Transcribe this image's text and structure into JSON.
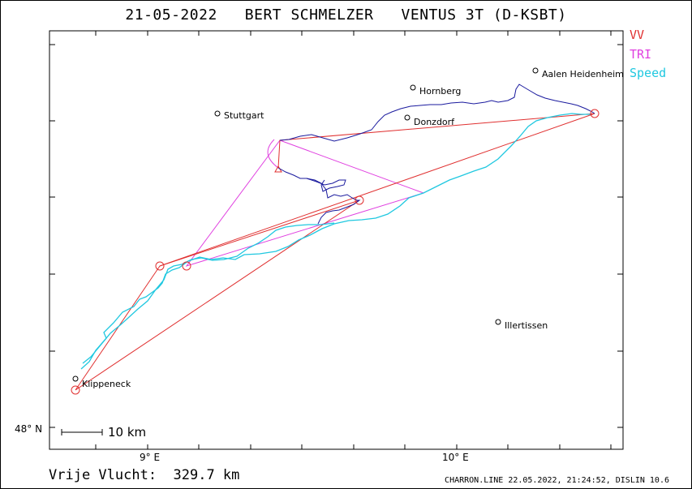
{
  "header": {
    "title": "21-05-2022   BERT SCHMELZER   VENTUS 3T (D-KSBT)"
  },
  "legend": {
    "items": [
      {
        "label": "VV",
        "color": "#e03030"
      },
      {
        "label": "TRI",
        "color": "#e040e0"
      },
      {
        "label": "Speed",
        "color": "#20c8e0"
      }
    ]
  },
  "map": {
    "places": [
      {
        "name": "Stuttgart"
      },
      {
        "name": "Hornberg"
      },
      {
        "name": "Aalen Heidenheim"
      },
      {
        "name": "Donzdorf"
      },
      {
        "name": "Illertissen"
      },
      {
        "name": "Klippeneck"
      }
    ],
    "axis": {
      "lon_labels": [
        "9° E",
        "10° E"
      ],
      "lat_labels": [
        "48° N"
      ]
    },
    "scalebar_label": "10 km",
    "colors": {
      "track": "#1a1a9e",
      "track_fast": "#20c8e0",
      "vv": "#e03030",
      "tri": "#e040e0"
    }
  },
  "footer": {
    "distance_label": "Vrije Vlucht:  329.7 km",
    "credit": "CHARRON.LINE 22.05.2022, 21:24:52, DISLIN 10.6"
  }
}
